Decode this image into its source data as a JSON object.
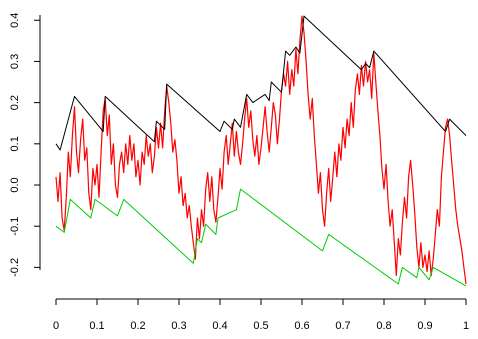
{
  "chart_data": {
    "type": "line",
    "title": "",
    "xlabel": "",
    "ylabel": "",
    "xlim": [
      0,
      1
    ],
    "ylim": [
      -0.25,
      0.42
    ],
    "x_ticks": [
      0,
      0.1,
      0.2,
      0.3,
      0.4,
      0.5,
      0.6,
      0.7,
      0.8,
      0.9,
      1
    ],
    "x_tick_labels": [
      "0",
      "0.1",
      "0.2",
      "0.3",
      "0.4",
      "0.5",
      "0.6",
      "0.7",
      "0.8",
      "0.9",
      "1"
    ],
    "y_ticks": [
      -0.2,
      -0.1,
      0.0,
      0.1,
      0.2,
      0.3,
      0.4
    ],
    "y_tick_labels": [
      "-0.2",
      "-0.1",
      "0.0",
      "0.1",
      "0.2",
      "0.3",
      "0.4"
    ],
    "grid": false,
    "legend": "none",
    "series": [
      {
        "color": "#ff0000",
        "points": [
          [
            0.0,
            0.02
          ],
          [
            0.005,
            -0.04
          ],
          [
            0.01,
            0.03
          ],
          [
            0.015,
            -0.08
          ],
          [
            0.02,
            -0.11
          ],
          [
            0.025,
            -0.03
          ],
          [
            0.03,
            0.08
          ],
          [
            0.035,
            0.02
          ],
          [
            0.04,
            0.12
          ],
          [
            0.045,
            0.19
          ],
          [
            0.05,
            0.08
          ],
          [
            0.055,
            0.03
          ],
          [
            0.06,
            0.11
          ],
          [
            0.065,
            0.16
          ],
          [
            0.07,
            0.06
          ],
          [
            0.075,
            0.09
          ],
          [
            0.08,
            -0.02
          ],
          [
            0.085,
            -0.06
          ],
          [
            0.09,
            0.04
          ],
          [
            0.095,
            0.0
          ],
          [
            0.1,
            0.05
          ],
          [
            0.105,
            -0.03
          ],
          [
            0.11,
            0.08
          ],
          [
            0.115,
            0.18
          ],
          [
            0.12,
            0.21
          ],
          [
            0.125,
            0.12
          ],
          [
            0.13,
            0.17
          ],
          [
            0.135,
            0.05
          ],
          [
            0.14,
            0.1
          ],
          [
            0.145,
            0.0
          ],
          [
            0.15,
            -0.03
          ],
          [
            0.155,
            0.05
          ],
          [
            0.16,
            0.08
          ],
          [
            0.165,
            0.03
          ],
          [
            0.17,
            0.1
          ],
          [
            0.175,
            0.05
          ],
          [
            0.18,
            0.12
          ],
          [
            0.185,
            0.06
          ],
          [
            0.19,
            0.1
          ],
          [
            0.195,
            0.02
          ],
          [
            0.2,
            0.06
          ],
          [
            0.205,
            0.0
          ],
          [
            0.21,
            0.08
          ],
          [
            0.215,
            0.05
          ],
          [
            0.22,
            0.12
          ],
          [
            0.225,
            0.07
          ],
          [
            0.23,
            0.1
          ],
          [
            0.235,
            0.03
          ],
          [
            0.24,
            0.07
          ],
          [
            0.245,
            0.14
          ],
          [
            0.25,
            0.09
          ],
          [
            0.255,
            0.15
          ],
          [
            0.26,
            0.09
          ],
          [
            0.265,
            0.18
          ],
          [
            0.27,
            0.24
          ],
          [
            0.275,
            0.2
          ],
          [
            0.28,
            0.15
          ],
          [
            0.285,
            0.08
          ],
          [
            0.29,
            0.11
          ],
          [
            0.295,
            0.06
          ],
          [
            0.3,
            -0.02
          ],
          [
            0.305,
            0.02
          ],
          [
            0.31,
            -0.05
          ],
          [
            0.315,
            -0.02
          ],
          [
            0.32,
            -0.08
          ],
          [
            0.325,
            -0.05
          ],
          [
            0.33,
            -0.1
          ],
          [
            0.335,
            -0.14
          ],
          [
            0.34,
            -0.18
          ],
          [
            0.345,
            -0.08
          ],
          [
            0.35,
            -0.13
          ],
          [
            0.355,
            -0.06
          ],
          [
            0.36,
            -0.1
          ],
          [
            0.365,
            -0.01
          ],
          [
            0.37,
            0.03
          ],
          [
            0.375,
            -0.04
          ],
          [
            0.38,
            0.02
          ],
          [
            0.385,
            -0.06
          ],
          [
            0.39,
            -0.09
          ],
          [
            0.395,
            -0.03
          ],
          [
            0.4,
            0.04
          ],
          [
            0.405,
            -0.01
          ],
          [
            0.41,
            0.08
          ],
          [
            0.415,
            0.12
          ],
          [
            0.42,
            0.05
          ],
          [
            0.425,
            0.1
          ],
          [
            0.43,
            0.15
          ],
          [
            0.435,
            0.07
          ],
          [
            0.44,
            0.13
          ],
          [
            0.445,
            0.08
          ],
          [
            0.45,
            0.05
          ],
          [
            0.455,
            0.1
          ],
          [
            0.46,
            0.16
          ],
          [
            0.465,
            0.21
          ],
          [
            0.47,
            0.14
          ],
          [
            0.475,
            0.18
          ],
          [
            0.48,
            0.11
          ],
          [
            0.485,
            0.07
          ],
          [
            0.49,
            0.12
          ],
          [
            0.495,
            0.05
          ],
          [
            0.5,
            0.09
          ],
          [
            0.505,
            0.14
          ],
          [
            0.51,
            0.19
          ],
          [
            0.515,
            0.13
          ],
          [
            0.52,
            0.08
          ],
          [
            0.525,
            0.14
          ],
          [
            0.53,
            0.2
          ],
          [
            0.535,
            0.17
          ],
          [
            0.54,
            0.1
          ],
          [
            0.545,
            0.16
          ],
          [
            0.55,
            0.23
          ],
          [
            0.555,
            0.27
          ],
          [
            0.56,
            0.24
          ],
          [
            0.565,
            0.3
          ],
          [
            0.57,
            0.22
          ],
          [
            0.575,
            0.28
          ],
          [
            0.58,
            0.24
          ],
          [
            0.585,
            0.33
          ],
          [
            0.59,
            0.27
          ],
          [
            0.595,
            0.35
          ],
          [
            0.6,
            0.41
          ],
          [
            0.605,
            0.37
          ],
          [
            0.61,
            0.3
          ],
          [
            0.615,
            0.22
          ],
          [
            0.62,
            0.16
          ],
          [
            0.625,
            0.21
          ],
          [
            0.63,
            0.12
          ],
          [
            0.635,
            0.05
          ],
          [
            0.64,
            -0.02
          ],
          [
            0.645,
            0.03
          ],
          [
            0.65,
            -0.06
          ],
          [
            0.655,
            -0.1
          ],
          [
            0.66,
            -0.02
          ],
          [
            0.665,
            0.04
          ],
          [
            0.67,
            -0.04
          ],
          [
            0.675,
            0.02
          ],
          [
            0.68,
            0.08
          ],
          [
            0.685,
            0.02
          ],
          [
            0.69,
            0.1
          ],
          [
            0.695,
            0.06
          ],
          [
            0.7,
            0.14
          ],
          [
            0.705,
            0.09
          ],
          [
            0.71,
            0.16
          ],
          [
            0.715,
            0.12
          ],
          [
            0.72,
            0.2
          ],
          [
            0.725,
            0.14
          ],
          [
            0.73,
            0.23
          ],
          [
            0.735,
            0.27
          ],
          [
            0.74,
            0.22
          ],
          [
            0.745,
            0.29
          ],
          [
            0.75,
            0.24
          ],
          [
            0.755,
            0.3
          ],
          [
            0.76,
            0.25
          ],
          [
            0.765,
            0.28
          ],
          [
            0.77,
            0.21
          ],
          [
            0.775,
            0.32
          ],
          [
            0.78,
            0.25
          ],
          [
            0.785,
            0.18
          ],
          [
            0.79,
            0.12
          ],
          [
            0.795,
            0.04
          ],
          [
            0.8,
            -0.01
          ],
          [
            0.805,
            0.05
          ],
          [
            0.81,
            -0.04
          ],
          [
            0.815,
            -0.1
          ],
          [
            0.82,
            -0.06
          ],
          [
            0.825,
            -0.14
          ],
          [
            0.83,
            -0.22
          ],
          [
            0.835,
            -0.13
          ],
          [
            0.84,
            -0.17
          ],
          [
            0.845,
            -0.09
          ],
          [
            0.85,
            -0.03
          ],
          [
            0.855,
            -0.08
          ],
          [
            0.86,
            0.02
          ],
          [
            0.865,
            0.06
          ],
          [
            0.87,
            0.0
          ],
          [
            0.875,
            -0.07
          ],
          [
            0.88,
            -0.15
          ],
          [
            0.885,
            -0.2
          ],
          [
            0.89,
            -0.14
          ],
          [
            0.895,
            -0.2
          ],
          [
            0.9,
            -0.17
          ],
          [
            0.905,
            -0.21
          ],
          [
            0.91,
            -0.16
          ],
          [
            0.915,
            -0.22
          ],
          [
            0.92,
            -0.18
          ],
          [
            0.925,
            -0.12
          ],
          [
            0.93,
            -0.06
          ],
          [
            0.935,
            -0.1
          ],
          [
            0.94,
            0.02
          ],
          [
            0.945,
            0.08
          ],
          [
            0.95,
            0.14
          ],
          [
            0.955,
            0.16
          ],
          [
            0.96,
            0.12
          ],
          [
            0.965,
            0.06
          ],
          [
            0.97,
            0.0
          ],
          [
            0.975,
            -0.06
          ],
          [
            0.98,
            -0.1
          ],
          [
            0.985,
            -0.13
          ],
          [
            0.99,
            -0.16
          ],
          [
            0.995,
            -0.2
          ],
          [
            1.0,
            -0.24
          ]
        ]
      },
      {
        "color": "#000000",
        "points": [
          [
            0.0,
            0.1
          ],
          [
            0.01,
            0.085
          ],
          [
            0.045,
            0.215
          ],
          [
            0.115,
            0.13
          ],
          [
            0.12,
            0.215
          ],
          [
            0.24,
            0.105
          ],
          [
            0.245,
            0.155
          ],
          [
            0.265,
            0.135
          ],
          [
            0.27,
            0.245
          ],
          [
            0.4,
            0.13
          ],
          [
            0.41,
            0.155
          ],
          [
            0.43,
            0.135
          ],
          [
            0.435,
            0.16
          ],
          [
            0.45,
            0.14
          ],
          [
            0.465,
            0.22
          ],
          [
            0.48,
            0.2
          ],
          [
            0.51,
            0.22
          ],
          [
            0.52,
            0.205
          ],
          [
            0.525,
            0.25
          ],
          [
            0.55,
            0.225
          ],
          [
            0.56,
            0.325
          ],
          [
            0.57,
            0.315
          ],
          [
            0.585,
            0.335
          ],
          [
            0.595,
            0.32
          ],
          [
            0.605,
            0.41
          ],
          [
            0.745,
            0.28
          ],
          [
            0.755,
            0.295
          ],
          [
            0.765,
            0.285
          ],
          [
            0.775,
            0.325
          ],
          [
            0.95,
            0.13
          ],
          [
            0.96,
            0.16
          ],
          [
            1.0,
            0.12
          ]
        ]
      },
      {
        "color": "#00cc00",
        "points": [
          [
            0.0,
            -0.1
          ],
          [
            0.02,
            -0.115
          ],
          [
            0.035,
            -0.035
          ],
          [
            0.085,
            -0.08
          ],
          [
            0.095,
            -0.035
          ],
          [
            0.15,
            -0.075
          ],
          [
            0.165,
            -0.035
          ],
          [
            0.335,
            -0.19
          ],
          [
            0.345,
            -0.13
          ],
          [
            0.355,
            -0.14
          ],
          [
            0.365,
            -0.095
          ],
          [
            0.39,
            -0.12
          ],
          [
            0.395,
            -0.08
          ],
          [
            0.44,
            -0.06
          ],
          [
            0.45,
            -0.01
          ],
          [
            0.65,
            -0.16
          ],
          [
            0.665,
            -0.12
          ],
          [
            0.835,
            -0.24
          ],
          [
            0.845,
            -0.2
          ],
          [
            0.88,
            -0.225
          ],
          [
            0.885,
            -0.2
          ],
          [
            0.91,
            -0.23
          ],
          [
            0.92,
            -0.2
          ],
          [
            1.0,
            -0.245
          ]
        ]
      }
    ]
  }
}
